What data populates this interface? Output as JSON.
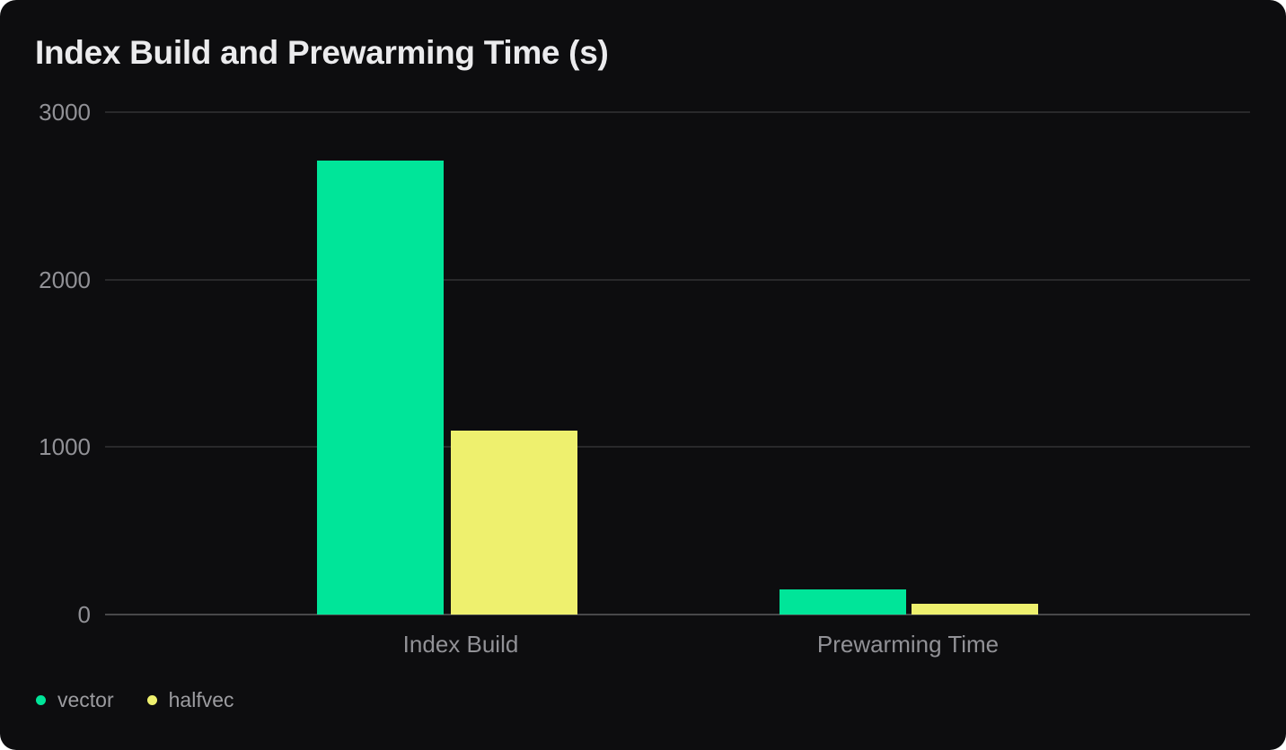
{
  "card": {
    "background": "#0d0d0f",
    "page_background": "#ffffff"
  },
  "colors": {
    "title_text": "#ebebed",
    "axis_text": "#919196",
    "legend_text": "#9c9ca0",
    "gridline": "#29292b",
    "baseline": "#48484a"
  },
  "chart_data": {
    "type": "bar",
    "title": "Index Build and Prewarming Time (s)",
    "unit": "seconds",
    "categories": [
      "Index Build",
      "Prewarming Time"
    ],
    "series": [
      {
        "name": "vector",
        "color": "#00e599",
        "values": [
          2710,
          150
        ]
      },
      {
        "name": "halfvec",
        "color": "#eef06e",
        "values": [
          1100,
          65
        ]
      }
    ],
    "y_ticks": [
      0,
      1000,
      2000,
      3000
    ],
    "ylim": [
      0,
      3000
    ],
    "xlabel": "",
    "ylabel": "",
    "grid": "horizontal",
    "legend_position": "bottom-left"
  }
}
